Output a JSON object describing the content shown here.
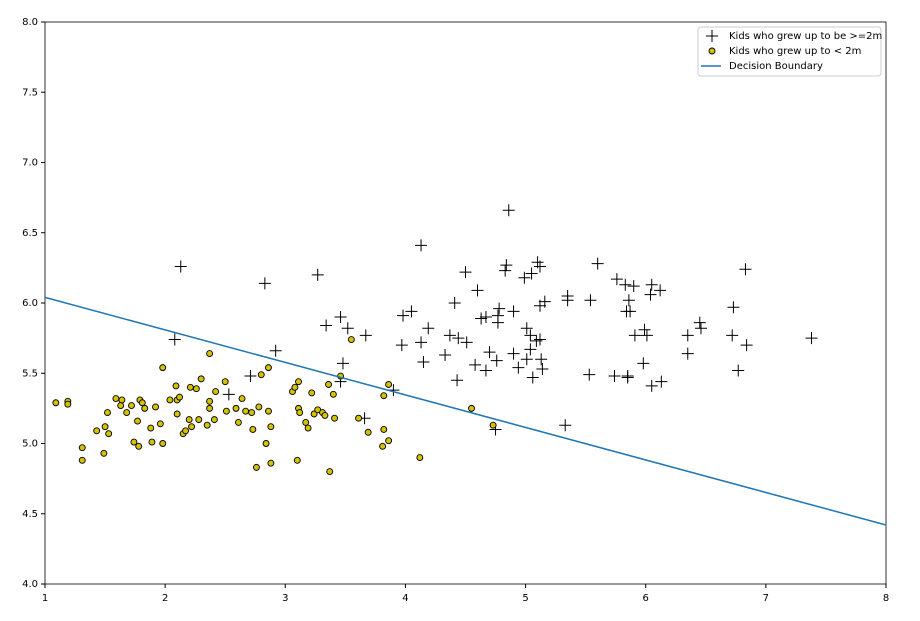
{
  "chart_data": {
    "type": "scatter",
    "xlim": [
      1,
      8
    ],
    "ylim": [
      4,
      8
    ],
    "xticks": [
      1,
      2,
      3,
      4,
      5,
      6,
      7,
      8
    ],
    "yticks": [
      {
        "value": 4,
        "label": "4.0"
      },
      4.5,
      {
        "value": 5,
        "label": "5.0"
      },
      5.5,
      {
        "value": 6,
        "label": "6.0"
      },
      6.5,
      {
        "value": 7,
        "label": "7.0"
      },
      7.5,
      {
        "value": 8,
        "label": "8.0"
      }
    ],
    "legend": "upper right",
    "series": [
      {
        "name": "Kids who grew up to be >=2m",
        "color": "#000000",
        "marker": "plus",
        "x": [
          2.13,
          2.08,
          2.83,
          2.92,
          2.71,
          2.53,
          3.27,
          3.34,
          3.46,
          3.52,
          3.67,
          3.48,
          3.46,
          3.66,
          3.9,
          4.13,
          4.05,
          3.98,
          4.19,
          3.97,
          4.13,
          4.15,
          4.33,
          4.37,
          4.41,
          4.44,
          4.5,
          4.6,
          4.51,
          4.43,
          4.58,
          4.63,
          4.67,
          4.7,
          4.67,
          4.76,
          4.78,
          4.77,
          4.77,
          4.75,
          4.86,
          4.84,
          4.83,
          4.9,
          4.9,
          4.94,
          4.99,
          5.05,
          5.01,
          5.04,
          5.01,
          5.04,
          5.09,
          5.06,
          5.1,
          5.12,
          5.12,
          5.16,
          5.12,
          5.13,
          5.14,
          5.33,
          5.35,
          5.35,
          5.54,
          5.53,
          5.6,
          5.76,
          5.74,
          5.84,
          5.83,
          5.86,
          5.87,
          5.85,
          5.85,
          5.9,
          5.91,
          5.99,
          6.01,
          5.98,
          6.04,
          6.05,
          6.05,
          6.12,
          6.13,
          6.35,
          6.35,
          6.45,
          6.46,
          6.73,
          6.72,
          6.77,
          6.83,
          6.84,
          7.38
        ],
        "values": [
          6.26,
          5.74,
          6.14,
          5.66,
          5.48,
          5.35,
          6.2,
          5.84,
          5.9,
          5.82,
          5.77,
          5.57,
          5.44,
          5.18,
          5.38,
          6.41,
          5.94,
          5.91,
          5.82,
          5.7,
          5.72,
          5.58,
          5.63,
          5.77,
          6.0,
          5.75,
          6.22,
          6.09,
          5.72,
          5.45,
          5.56,
          5.89,
          5.9,
          5.65,
          5.52,
          5.59,
          5.96,
          5.91,
          5.86,
          5.1,
          6.66,
          6.27,
          6.23,
          5.94,
          5.64,
          5.54,
          6.18,
          6.21,
          5.82,
          5.77,
          5.6,
          5.67,
          5.73,
          5.47,
          6.29,
          6.26,
          5.98,
          6.01,
          5.74,
          5.6,
          5.53,
          5.13,
          6.05,
          6.02,
          6.02,
          5.49,
          6.28,
          6.17,
          5.48,
          5.94,
          6.13,
          6.02,
          5.94,
          5.48,
          5.47,
          6.12,
          5.77,
          5.81,
          5.77,
          5.57,
          6.06,
          5.41,
          6.13,
          6.09,
          5.44,
          5.77,
          5.64,
          5.86,
          5.82,
          5.97,
          5.77,
          5.52,
          6.24,
          5.7,
          5.75
        ]
      },
      {
        "name": "Kids who grew up to < 2m",
        "color": "#d4c200",
        "marker": "circle",
        "x": [
          1.09,
          1.19,
          1.19,
          1.31,
          1.31,
          1.43,
          1.49,
          1.5,
          1.53,
          1.52,
          1.59,
          1.63,
          1.64,
          1.68,
          1.72,
          1.74,
          1.78,
          1.77,
          1.79,
          1.81,
          1.83,
          1.88,
          1.89,
          1.92,
          1.96,
          1.98,
          1.98,
          2.04,
          2.09,
          2.1,
          2.12,
          2.1,
          2.15,
          2.17,
          2.21,
          2.2,
          2.22,
          2.26,
          2.28,
          2.3,
          2.35,
          2.37,
          2.37,
          2.37,
          2.41,
          2.42,
          2.5,
          2.51,
          2.59,
          2.61,
          2.64,
          2.67,
          2.72,
          2.73,
          2.76,
          2.78,
          2.8,
          2.84,
          2.86,
          2.86,
          2.88,
          2.88,
          3.06,
          3.08,
          3.1,
          3.11,
          3.12,
          3.11,
          3.17,
          3.19,
          3.22,
          3.24,
          3.27,
          3.31,
          3.33,
          3.36,
          3.37,
          3.4,
          3.41,
          3.46,
          3.55,
          3.61,
          3.69,
          3.82,
          3.82,
          3.81,
          3.86,
          3.86,
          4.12,
          4.55,
          4.73
        ],
        "values": [
          5.29,
          5.3,
          5.28,
          4.97,
          4.88,
          5.09,
          4.93,
          5.12,
          5.07,
          5.22,
          5.32,
          5.27,
          5.31,
          5.22,
          5.27,
          5.01,
          4.98,
          5.16,
          5.31,
          5.29,
          5.25,
          5.11,
          5.01,
          5.26,
          5.14,
          5.54,
          5.0,
          5.31,
          5.41,
          5.31,
          5.33,
          5.21,
          5.07,
          5.09,
          5.4,
          5.17,
          5.12,
          5.39,
          5.17,
          5.46,
          5.13,
          5.64,
          5.3,
          5.25,
          5.17,
          5.37,
          5.44,
          5.23,
          5.25,
          5.15,
          5.32,
          5.23,
          5.22,
          5.1,
          4.83,
          5.26,
          5.49,
          5.0,
          5.54,
          5.23,
          5.12,
          4.86,
          5.37,
          5.4,
          4.88,
          5.25,
          5.22,
          5.44,
          5.15,
          5.11,
          5.36,
          5.21,
          5.24,
          5.22,
          5.2,
          5.42,
          4.8,
          5.35,
          5.18,
          5.48,
          5.74,
          5.18,
          5.08,
          5.34,
          5.1,
          4.98,
          5.02,
          5.42,
          4.9,
          5.25,
          5.13
        ]
      },
      {
        "name": "Decision Boundary",
        "color": "#1f77b4",
        "marker": "line",
        "x": [
          1,
          8
        ],
        "values": [
          6.04,
          4.42
        ]
      }
    ]
  }
}
